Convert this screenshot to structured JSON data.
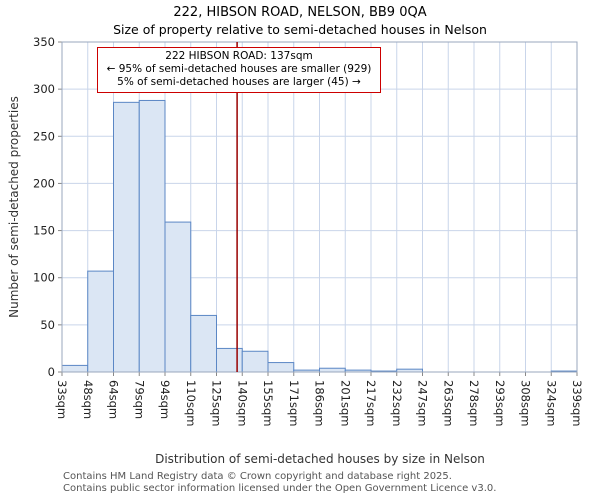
{
  "title": "222, HIBSON ROAD, NELSON, BB9 0QA",
  "subtitle": "Size of property relative to semi-detached houses in Nelson",
  "chart_data": {
    "type": "bar",
    "title": "222, HIBSON ROAD, NELSON, BB9 0QA",
    "subtitle": "Size of property relative to semi-detached houses in Nelson",
    "xlabel": "Distribution of semi-detached houses by size in Nelson",
    "ylabel": "Number of semi-detached properties",
    "ylim": [
      0,
      350
    ],
    "ytick_step": 50,
    "grid": true,
    "bin_edges": [
      33,
      48,
      64,
      79,
      94,
      110,
      125,
      140,
      155,
      171,
      186,
      201,
      217,
      232,
      247,
      263,
      278,
      293,
      308,
      324,
      339
    ],
    "tick_labels": [
      "33sqm",
      "48sqm",
      "64sqm",
      "79sqm",
      "94sqm",
      "110sqm",
      "125sqm",
      "140sqm",
      "155sqm",
      "171sqm",
      "186sqm",
      "201sqm",
      "217sqm",
      "232sqm",
      "247sqm",
      "263sqm",
      "278sqm",
      "293sqm",
      "308sqm",
      "324sqm",
      "339sqm"
    ],
    "values": [
      7,
      107,
      286,
      288,
      159,
      60,
      25,
      22,
      10,
      2,
      4,
      2,
      1,
      3,
      0,
      0,
      0,
      0,
      0,
      1
    ],
    "bar_fill": "#dbe6f4",
    "bar_border": "#5b87c5",
    "grid_color": "#c9d5ea",
    "plot_bg": "#ffffff",
    "axis_border": "#9aa7bd",
    "marker": {
      "value": 137,
      "color": "#990000",
      "label": "222 HIBSON ROAD: 137sqm",
      "smaller_line": "← 95% of semi-detached houses are smaller (929)",
      "larger_line": "5% of semi-detached houses are larger (45) →"
    }
  },
  "footer": {
    "line1": "Contains HM Land Registry data © Crown copyright and database right 2025.",
    "line2": "Contains public sector information licensed under the Open Government Licence v3.0."
  }
}
